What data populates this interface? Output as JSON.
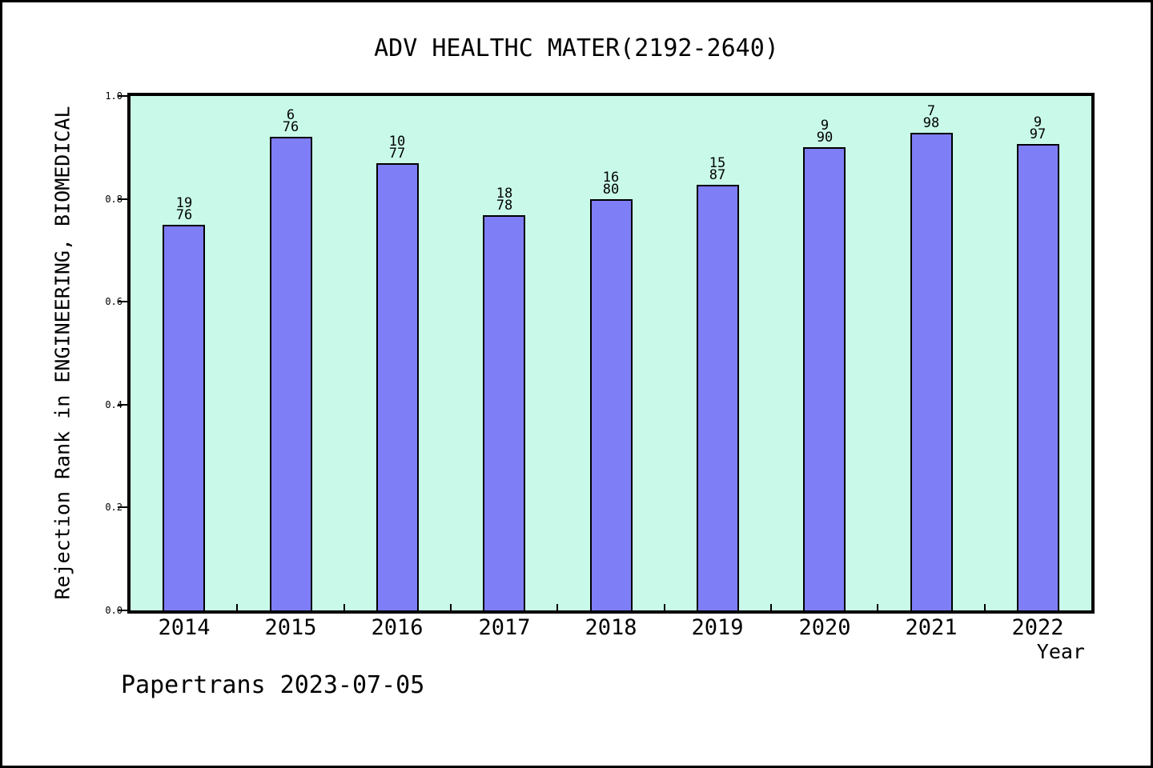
{
  "footer": "Papertrans 2023-07-05",
  "chart_data": {
    "type": "bar",
    "title": "ADV HEALTHC MATER(2192-2640)",
    "xlabel": "Year",
    "ylabel": "Rejection Rank in ENGINEERING, BIOMEDICAL",
    "categories": [
      "2014",
      "2015",
      "2016",
      "2017",
      "2018",
      "2019",
      "2020",
      "2021",
      "2022"
    ],
    "values": [
      0.75,
      0.921,
      0.87,
      0.769,
      0.8,
      0.828,
      0.9,
      0.929,
      0.907
    ],
    "annotations": [
      {
        "rank": "19",
        "total": "76"
      },
      {
        "rank": "6",
        "total": "76"
      },
      {
        "rank": "10",
        "total": "77"
      },
      {
        "rank": "18",
        "total": "78"
      },
      {
        "rank": "16",
        "total": "80"
      },
      {
        "rank": "15",
        "total": "87"
      },
      {
        "rank": "9",
        "total": "90"
      },
      {
        "rank": "7",
        "total": "98"
      },
      {
        "rank": "9",
        "total": "97"
      }
    ],
    "ylim": [
      0,
      1
    ],
    "yticks": [
      "0.0",
      "0.2",
      "0.4",
      "0.6",
      "0.8",
      "1.0"
    ],
    "grid": false,
    "legend": "none",
    "colors": {
      "bar_fill": "#7e7ef7",
      "bar_edge": "#000000",
      "plot_background": "#c9fae9",
      "page_background": "#ffffff"
    }
  }
}
